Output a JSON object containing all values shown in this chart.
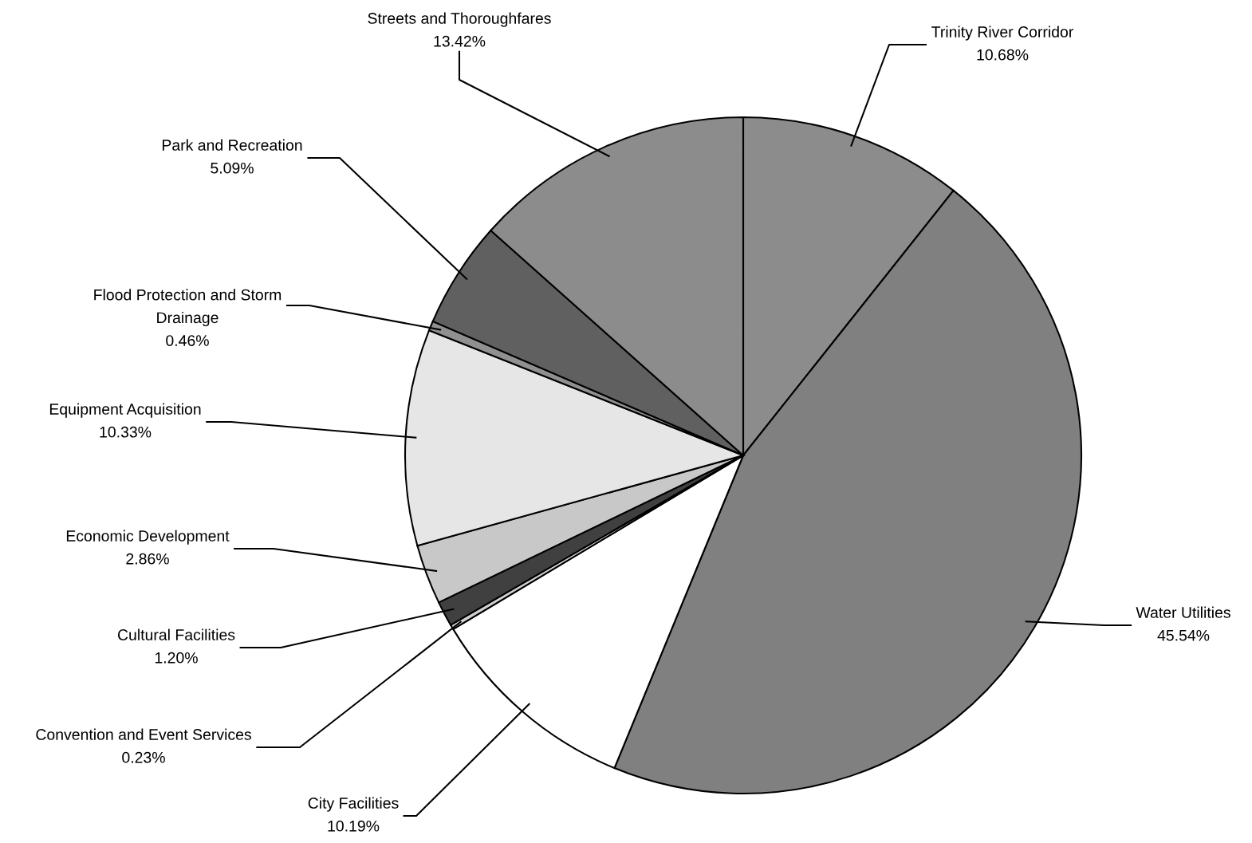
{
  "chart_data": {
    "type": "pie",
    "categories": [
      "Trinity River Corridor",
      "Water Utilities",
      "City Facilities",
      "Convention and Event Services",
      "Cultural Facilities",
      "Economic Development",
      "Equipment Acquisition",
      "Flood Protection and Storm Drainage",
      "Park and Recreation",
      "Streets and Thoroughfares"
    ],
    "values": [
      10.68,
      45.54,
      10.19,
      0.23,
      1.2,
      2.86,
      10.33,
      0.46,
      5.09,
      13.42
    ],
    "value_labels": [
      "10.68%",
      "45.54%",
      "10.19%",
      "0.23%",
      "1.20%",
      "2.86%",
      "10.33%",
      "0.46%",
      "5.09%",
      "13.42%"
    ],
    "colors": [
      "#8c8c8c",
      "#808080",
      "#ffffff",
      "#d0d0d0",
      "#404040",
      "#c8c8c8",
      "#e6e6e6",
      "#909090",
      "#606060",
      "#8c8c8c"
    ],
    "legend": false
  }
}
